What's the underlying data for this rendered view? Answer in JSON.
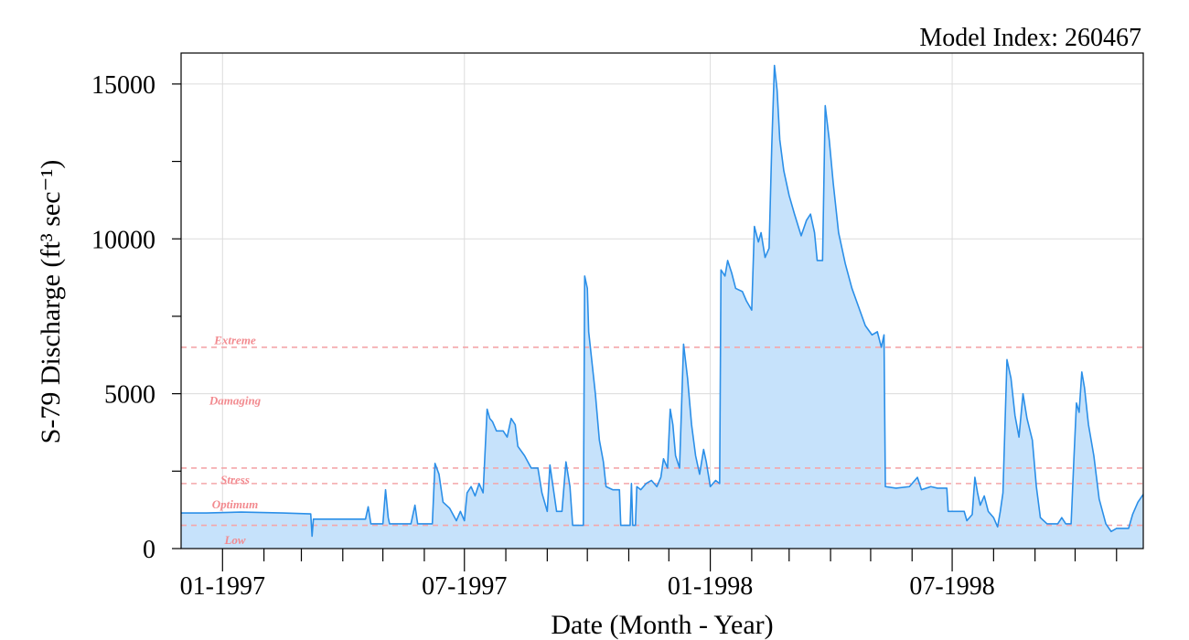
{
  "chart_data": {
    "type": "area",
    "top_right_text": "Model Index: 260467",
    "xlabel": "Date (Month - Year)",
    "ylabel": "S-79 Discharge (ft³ sec⁻¹)",
    "xlim": [
      "1996-12-01",
      "1998-11-21"
    ],
    "ylim": [
      0,
      16000
    ],
    "y_ticks": [
      0,
      5000,
      10000,
      15000
    ],
    "x_tick_labels": [
      {
        "date": "1997-01-01",
        "label": "01-1997"
      },
      {
        "date": "1997-07-01",
        "label": "07-1997"
      },
      {
        "date": "1998-01-01",
        "label": "01-1998"
      },
      {
        "date": "1998-07-01",
        "label": "07-1998"
      }
    ],
    "x_minor_ticks": [
      "1997-02-01",
      "1997-03-01",
      "1997-04-01",
      "1997-05-01",
      "1997-06-01",
      "1997-08-01",
      "1997-09-01",
      "1997-10-01",
      "1997-11-01",
      "1997-12-01",
      "1998-02-01",
      "1998-03-01",
      "1998-04-01",
      "1998-05-01",
      "1998-06-01",
      "1998-08-01",
      "1998-09-01",
      "1998-10-01",
      "1998-11-01"
    ],
    "grid": true,
    "line_color": "#2b8fe8",
    "fill_color": "#c6e2fb",
    "threshold_color": "#f4a6aa",
    "threshold_label_color": "#f28a8f",
    "thresholds": [
      {
        "label": "Extreme",
        "value": 6500,
        "label_value": 6750
      },
      {
        "label": "Damaging",
        "value": null,
        "label_value": 4800
      },
      {
        "label": "Stress",
        "value": 2600,
        "label_value": 2250
      },
      {
        "label": "Optimum",
        "value": 2100,
        "label_value": 1450
      },
      {
        "label": "Low",
        "value": 750,
        "label_value": 300
      }
    ],
    "series": [
      {
        "points": [
          [
            "1996-12-01",
            1150
          ],
          [
            "1996-12-20",
            1150
          ],
          [
            "1997-01-15",
            1180
          ],
          [
            "1997-02-15",
            1150
          ],
          [
            "1997-03-08",
            1120
          ],
          [
            "1997-03-09",
            400
          ],
          [
            "1997-03-10",
            950
          ],
          [
            "1997-04-18",
            950
          ],
          [
            "1997-04-20",
            1350
          ],
          [
            "1997-04-22",
            800
          ],
          [
            "1997-05-01",
            800
          ],
          [
            "1997-05-03",
            1900
          ],
          [
            "1997-05-05",
            1000
          ],
          [
            "1997-05-06",
            800
          ],
          [
            "1997-05-22",
            800
          ],
          [
            "1997-05-25",
            1400
          ],
          [
            "1997-05-27",
            800
          ],
          [
            "1997-06-07",
            800
          ],
          [
            "1997-06-09",
            2750
          ],
          [
            "1997-06-12",
            2400
          ],
          [
            "1997-06-15",
            1500
          ],
          [
            "1997-06-20",
            1300
          ],
          [
            "1997-06-25",
            900
          ],
          [
            "1997-06-28",
            1200
          ],
          [
            "1997-07-01",
            900
          ],
          [
            "1997-07-03",
            1800
          ],
          [
            "1997-07-06",
            2000
          ],
          [
            "1997-07-09",
            1700
          ],
          [
            "1997-07-12",
            2100
          ],
          [
            "1997-07-15",
            1800
          ],
          [
            "1997-07-18",
            4500
          ],
          [
            "1997-07-20",
            4200
          ],
          [
            "1997-07-22",
            4100
          ],
          [
            "1997-07-25",
            3800
          ],
          [
            "1997-07-30",
            3800
          ],
          [
            "1997-08-02",
            3600
          ],
          [
            "1997-08-05",
            4200
          ],
          [
            "1997-08-08",
            4000
          ],
          [
            "1997-08-10",
            3300
          ],
          [
            "1997-08-15",
            3000
          ],
          [
            "1997-08-20",
            2600
          ],
          [
            "1997-08-25",
            2600
          ],
          [
            "1997-08-28",
            1800
          ],
          [
            "1997-09-01",
            1200
          ],
          [
            "1997-09-03",
            2700
          ],
          [
            "1997-09-05",
            2100
          ],
          [
            "1997-09-08",
            1200
          ],
          [
            "1997-09-12",
            1200
          ],
          [
            "1997-09-15",
            2800
          ],
          [
            "1997-09-18",
            2000
          ],
          [
            "1997-09-20",
            750
          ],
          [
            "1997-09-28",
            750
          ],
          [
            "1997-09-29",
            8800
          ],
          [
            "1997-10-01",
            8400
          ],
          [
            "1997-10-02",
            7000
          ],
          [
            "1997-10-07",
            5000
          ],
          [
            "1997-10-10",
            3500
          ],
          [
            "1997-10-13",
            2800
          ],
          [
            "1997-10-15",
            2000
          ],
          [
            "1997-10-20",
            1900
          ],
          [
            "1997-10-25",
            1900
          ],
          [
            "1997-10-26",
            750
          ],
          [
            "1997-11-02",
            750
          ],
          [
            "1997-11-03",
            2100
          ],
          [
            "1997-11-04",
            750
          ],
          [
            "1997-11-06",
            750
          ],
          [
            "1997-11-07",
            2000
          ],
          [
            "1997-11-10",
            1900
          ],
          [
            "1997-11-14",
            2100
          ],
          [
            "1997-11-18",
            2200
          ],
          [
            "1997-11-22",
            2000
          ],
          [
            "1997-11-25",
            2300
          ],
          [
            "1997-11-27",
            2900
          ],
          [
            "1997-11-30",
            2600
          ],
          [
            "1997-12-02",
            4500
          ],
          [
            "1997-12-04",
            4000
          ],
          [
            "1997-12-06",
            3000
          ],
          [
            "1997-12-09",
            2600
          ],
          [
            "1997-12-12",
            6600
          ],
          [
            "1997-12-15",
            5500
          ],
          [
            "1997-12-18",
            4000
          ],
          [
            "1997-12-21",
            3000
          ],
          [
            "1997-12-24",
            2400
          ],
          [
            "1997-12-27",
            3200
          ],
          [
            "1997-12-29",
            2800
          ],
          [
            "1998-01-01",
            2000
          ],
          [
            "1998-01-05",
            2200
          ],
          [
            "1998-01-08",
            2100
          ],
          [
            "1998-01-09",
            9000
          ],
          [
            "1998-01-12",
            8800
          ],
          [
            "1998-01-14",
            9300
          ],
          [
            "1998-01-17",
            8900
          ],
          [
            "1998-01-20",
            8400
          ],
          [
            "1998-01-25",
            8300
          ],
          [
            "1998-01-28",
            8000
          ],
          [
            "1998-02-01",
            7700
          ],
          [
            "1998-02-03",
            10400
          ],
          [
            "1998-02-06",
            9900
          ],
          [
            "1998-02-08",
            10200
          ],
          [
            "1998-02-11",
            9400
          ],
          [
            "1998-02-14",
            9700
          ],
          [
            "1998-02-16",
            13000
          ],
          [
            "1998-02-18",
            15600
          ],
          [
            "1998-02-20",
            14800
          ],
          [
            "1998-02-22",
            13200
          ],
          [
            "1998-02-25",
            12200
          ],
          [
            "1998-03-01",
            11400
          ],
          [
            "1998-03-05",
            10800
          ],
          [
            "1998-03-10",
            10100
          ],
          [
            "1998-03-14",
            10600
          ],
          [
            "1998-03-17",
            10800
          ],
          [
            "1998-03-20",
            10200
          ],
          [
            "1998-03-22",
            9300
          ],
          [
            "1998-03-26",
            9300
          ],
          [
            "1998-03-28",
            14300
          ],
          [
            "1998-03-31",
            13200
          ],
          [
            "1998-04-03",
            11800
          ],
          [
            "1998-04-07",
            10200
          ],
          [
            "1998-04-12",
            9200
          ],
          [
            "1998-04-17",
            8400
          ],
          [
            "1998-04-22",
            7800
          ],
          [
            "1998-04-27",
            7200
          ],
          [
            "1998-05-02",
            6900
          ],
          [
            "1998-05-06",
            7000
          ],
          [
            "1998-05-09",
            6500
          ],
          [
            "1998-05-11",
            6900
          ],
          [
            "1998-05-12",
            2000
          ],
          [
            "1998-05-20",
            1950
          ],
          [
            "1998-05-30",
            2000
          ],
          [
            "1998-06-05",
            2300
          ],
          [
            "1998-06-08",
            1900
          ],
          [
            "1998-06-15",
            2000
          ],
          [
            "1998-06-20",
            1950
          ],
          [
            "1998-06-27",
            1950
          ],
          [
            "1998-06-28",
            1200
          ],
          [
            "1998-07-10",
            1200
          ],
          [
            "1998-07-12",
            900
          ],
          [
            "1998-07-16",
            1100
          ],
          [
            "1998-07-18",
            2300
          ],
          [
            "1998-07-20",
            1800
          ],
          [
            "1998-07-22",
            1400
          ],
          [
            "1998-07-25",
            1700
          ],
          [
            "1998-07-28",
            1200
          ],
          [
            "1998-08-01",
            1000
          ],
          [
            "1998-08-04",
            700
          ],
          [
            "1998-08-06",
            1200
          ],
          [
            "1998-08-08",
            1800
          ],
          [
            "1998-08-11",
            6100
          ],
          [
            "1998-08-14",
            5500
          ],
          [
            "1998-08-17",
            4300
          ],
          [
            "1998-08-20",
            3600
          ],
          [
            "1998-08-23",
            5000
          ],
          [
            "1998-08-26",
            4200
          ],
          [
            "1998-08-30",
            3500
          ],
          [
            "1998-09-02",
            2000
          ],
          [
            "1998-09-05",
            1000
          ],
          [
            "1998-09-10",
            800
          ],
          [
            "1998-09-18",
            800
          ],
          [
            "1998-09-21",
            1000
          ],
          [
            "1998-09-24",
            800
          ],
          [
            "1998-09-28",
            800
          ],
          [
            "1998-09-30",
            2800
          ],
          [
            "1998-10-02",
            4700
          ],
          [
            "1998-10-04",
            4400
          ],
          [
            "1998-10-06",
            5700
          ],
          [
            "1998-10-08",
            5200
          ],
          [
            "1998-10-11",
            4000
          ],
          [
            "1998-10-15",
            3000
          ],
          [
            "1998-10-19",
            1600
          ],
          [
            "1998-10-24",
            800
          ],
          [
            "1998-10-28",
            550
          ],
          [
            "1998-11-01",
            650
          ],
          [
            "1998-11-06",
            650
          ],
          [
            "1998-11-10",
            650
          ],
          [
            "1998-11-13",
            1100
          ],
          [
            "1998-11-17",
            1500
          ],
          [
            "1998-11-21",
            1750
          ]
        ]
      }
    ]
  }
}
